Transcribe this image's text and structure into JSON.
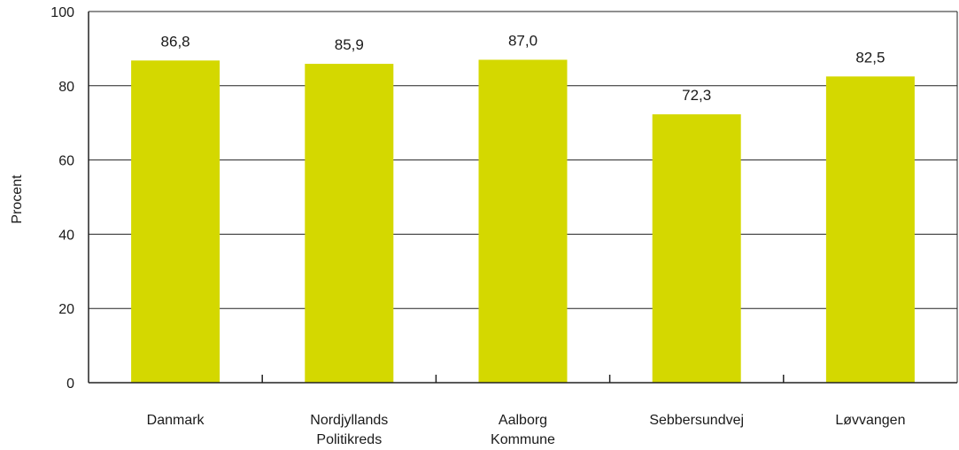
{
  "chart_data": {
    "type": "bar",
    "categories": [
      [
        "Danmark"
      ],
      [
        "Nordjyllands",
        "Politikreds"
      ],
      [
        "Aalborg",
        "Kommune"
      ],
      [
        "Sebbersundvej"
      ],
      [
        "Løvvangen"
      ]
    ],
    "values": [
      86.8,
      85.9,
      87.0,
      72.3,
      82.5
    ],
    "value_labels": [
      "86,8",
      "85,9",
      "87,0",
      "72,3",
      "82,5"
    ],
    "ylabel": "Procent",
    "xlabel": "",
    "ylim": [
      0,
      100
    ],
    "yticks": [
      0,
      20,
      40,
      60,
      80,
      100
    ],
    "grid": true,
    "bar_color": "#d4d800"
  }
}
